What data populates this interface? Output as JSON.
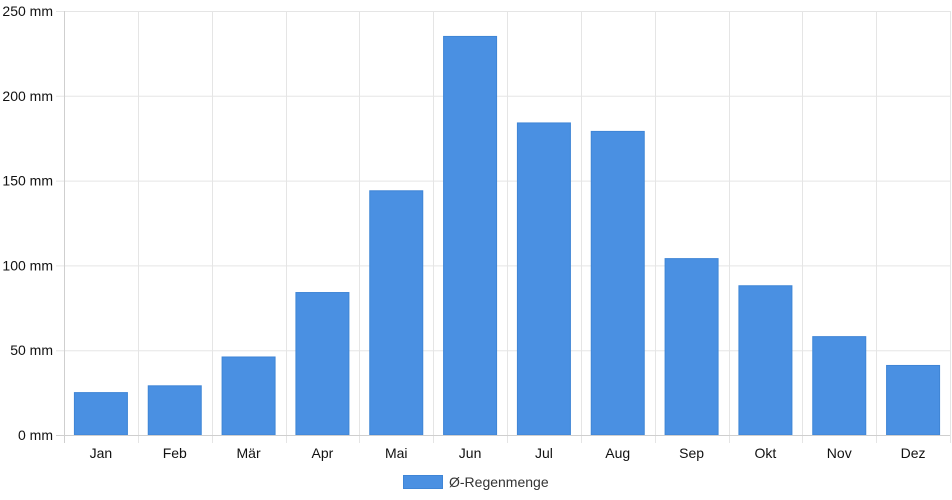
{
  "chart_data": {
    "type": "bar",
    "categories": [
      "Jan",
      "Feb",
      "Mär",
      "Apr",
      "Mai",
      "Jun",
      "Jul",
      "Aug",
      "Sep",
      "Okt",
      "Nov",
      "Dez"
    ],
    "series": [
      {
        "name": "Ø-Regenmenge",
        "values": [
          25,
          29,
          46,
          84,
          144,
          235,
          184,
          179,
          104,
          88,
          58,
          41
        ]
      }
    ],
    "ylim": [
      0,
      250
    ],
    "yticks": [
      "0 mm",
      "50 mm",
      "100 mm",
      "150 mm",
      "200 mm",
      "250 mm"
    ],
    "grid": true,
    "legend_position": "bottom",
    "colors": {
      "bar": "#4a90e2",
      "bar_border": "#3f85d6",
      "grid": "#e5e5e5"
    }
  }
}
